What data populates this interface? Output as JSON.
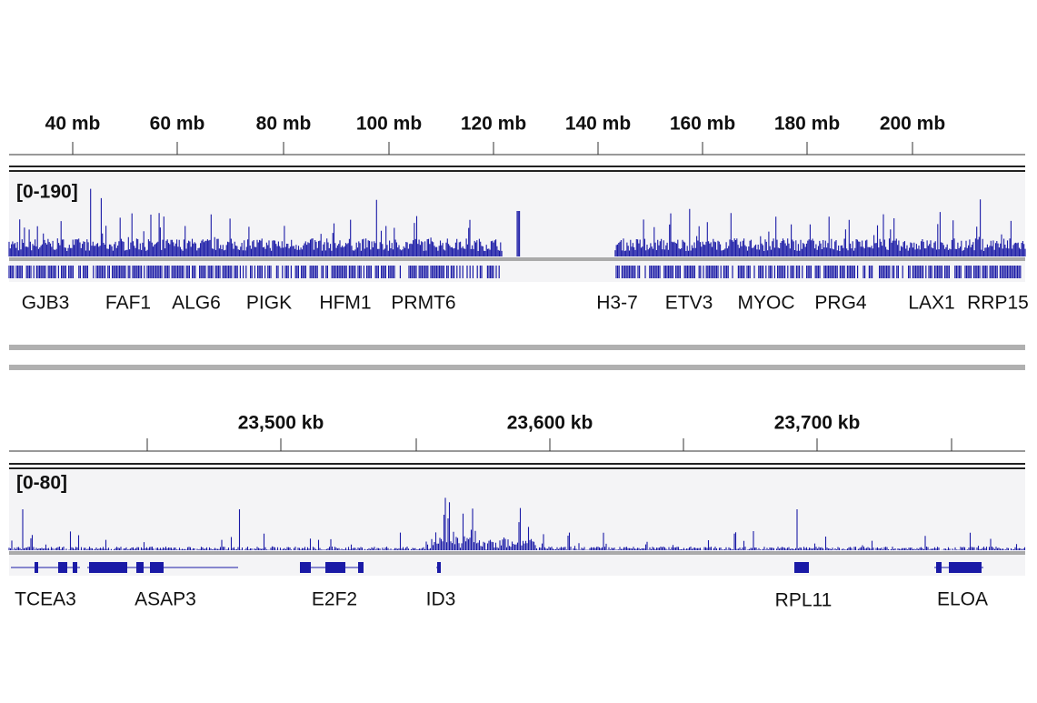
{
  "top_panel": {
    "ticks": [
      "40 mb",
      "60 mb",
      "80 mb",
      "100 mb",
      "120 mb",
      "140 mb",
      "160 mb",
      "180 mb",
      "200 mb"
    ],
    "range": "[0-190]",
    "genes": [
      "GJB3",
      "FAF1",
      "ALG6",
      "PIGK",
      "HFM1",
      "PRMT6",
      "H3-7",
      "ETV3",
      "MYOC",
      "PRG4",
      "LAX1",
      "RRP15"
    ]
  },
  "bottom_panel": {
    "ticks": [
      "23,500 kb",
      "23,600 kb",
      "23,700 kb"
    ],
    "range": "[0-80]",
    "genes": [
      "TCEA3",
      "ASAP3",
      "E2F2",
      "ID3",
      "RPL11",
      "ELOA"
    ]
  }
}
